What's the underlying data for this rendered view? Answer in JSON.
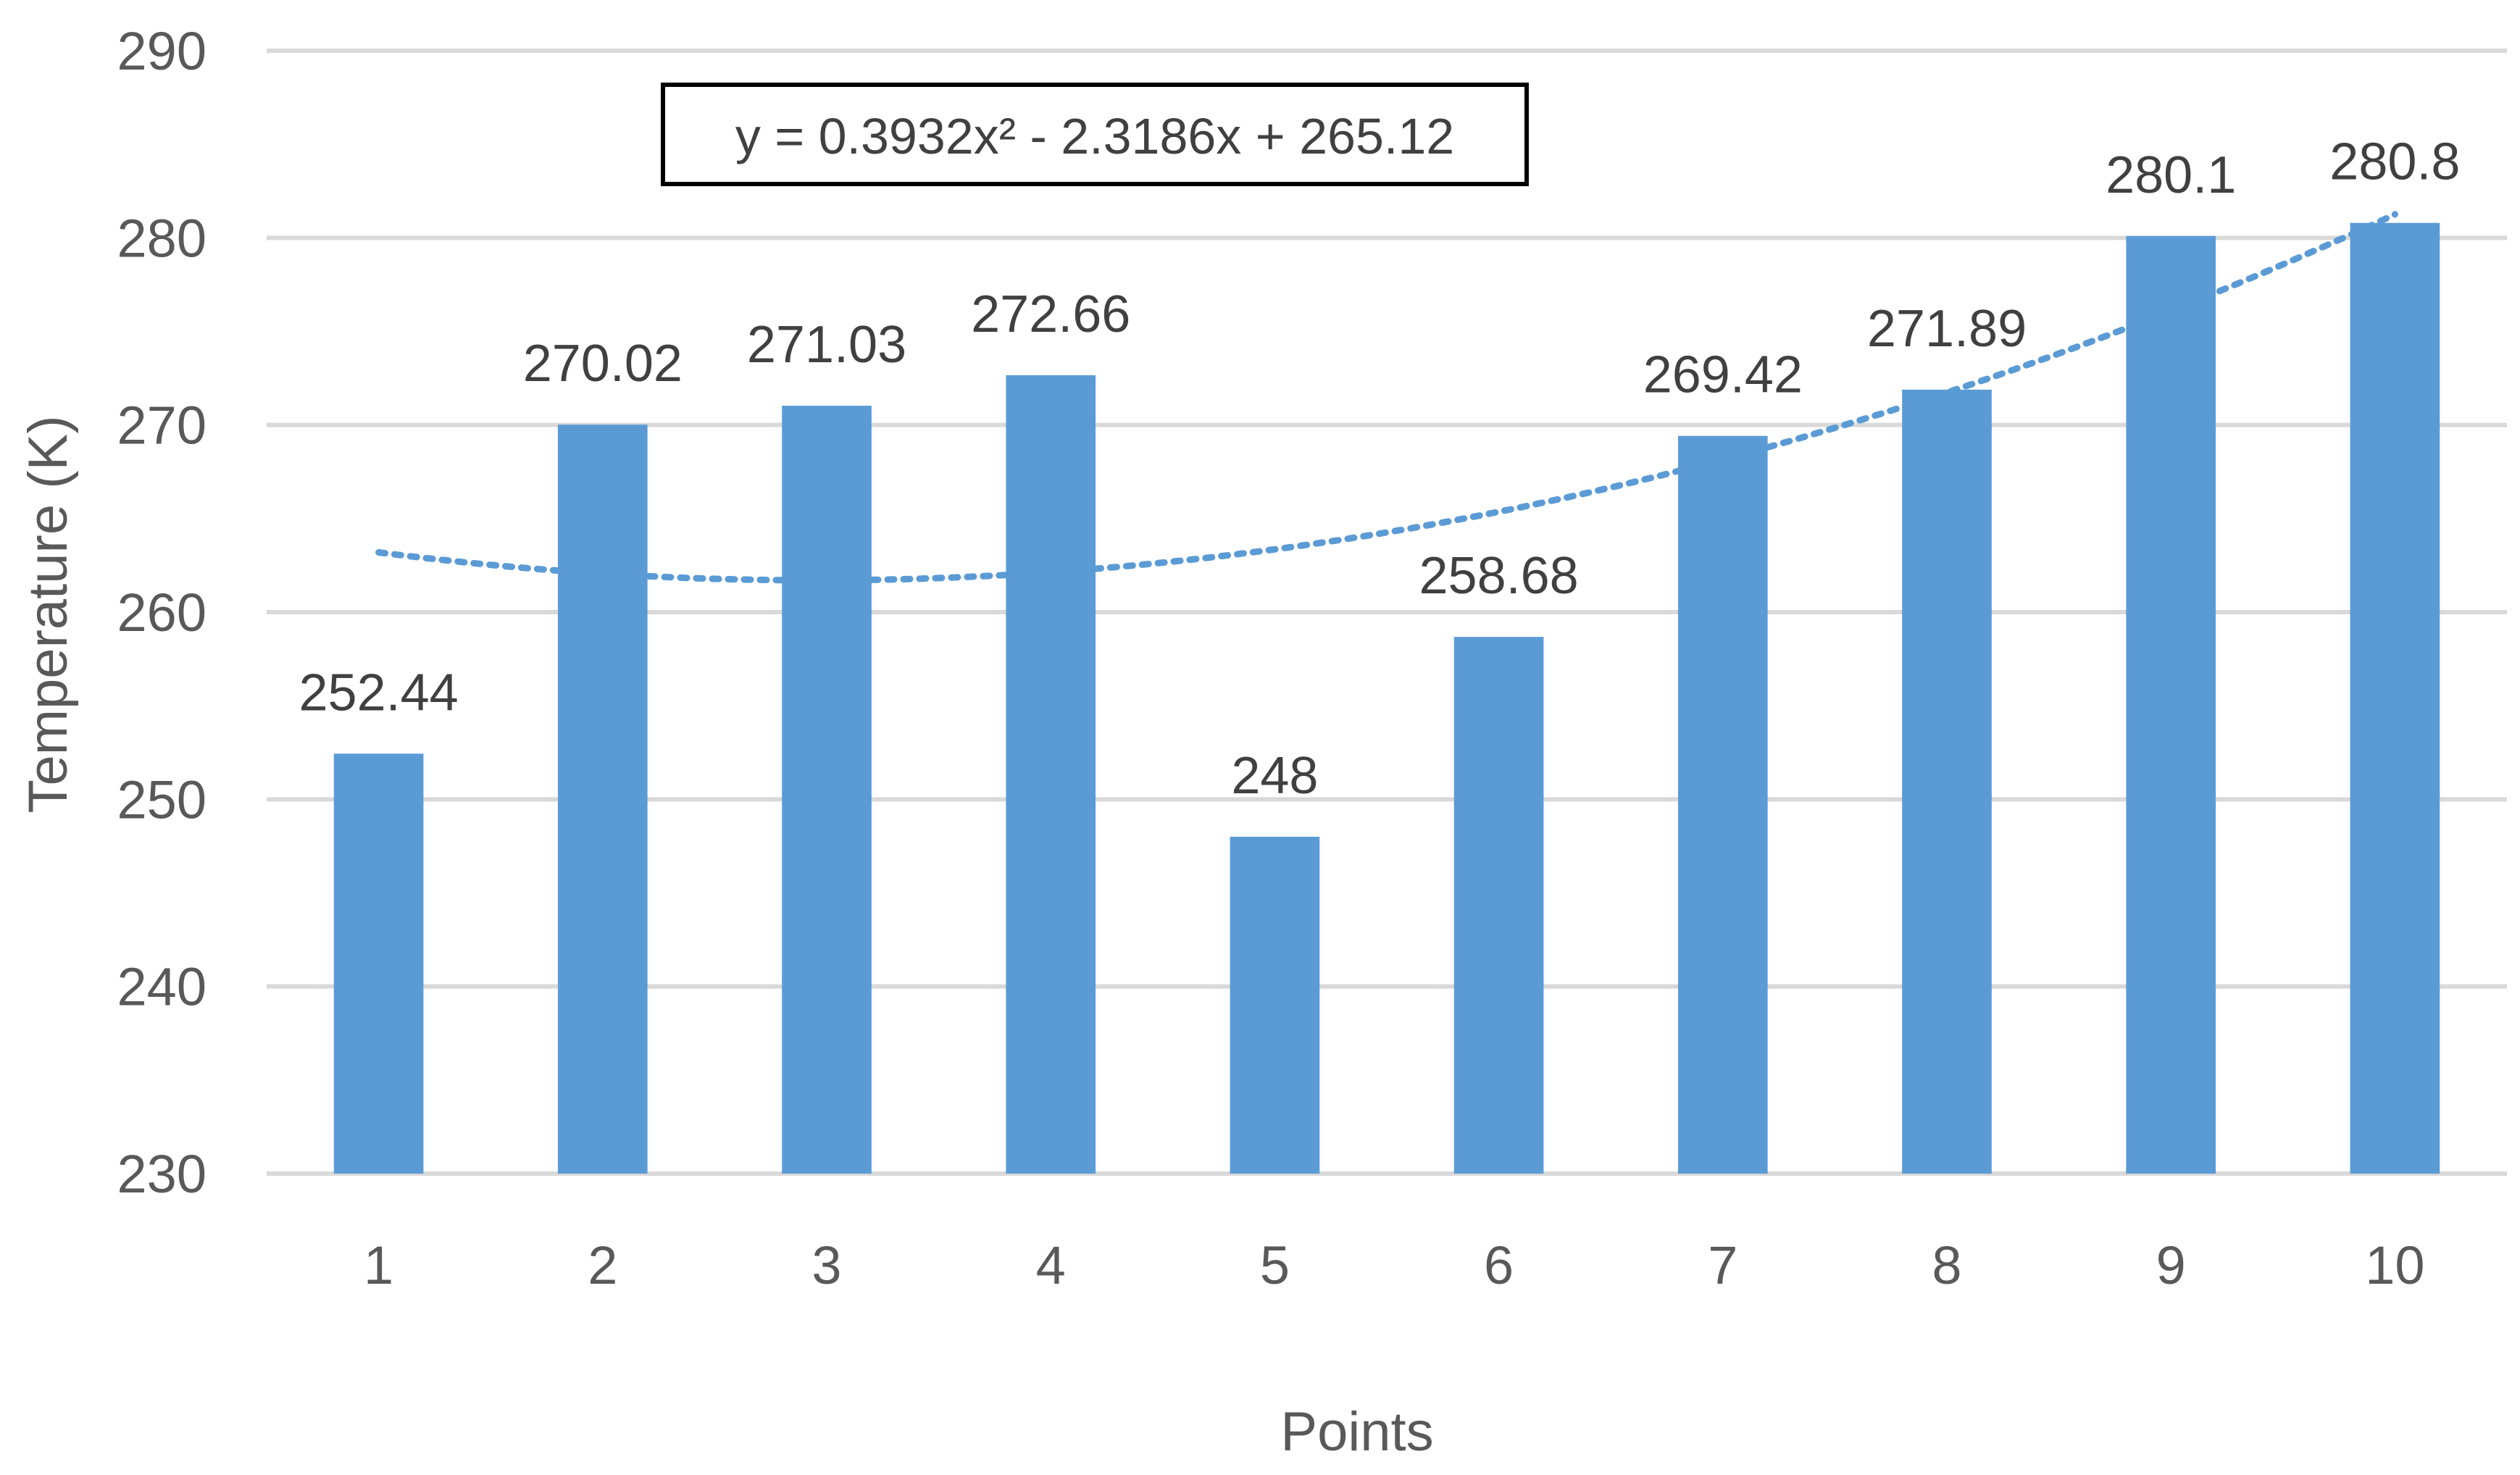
{
  "chart_data": {
    "type": "bar",
    "categories": [
      "1",
      "2",
      "3",
      "4",
      "5",
      "6",
      "7",
      "8",
      "9",
      "10"
    ],
    "values": [
      252.44,
      270.02,
      271.03,
      272.66,
      248,
      258.68,
      269.42,
      271.89,
      280.1,
      280.8
    ],
    "data_labels": [
      "252.44",
      "270.02",
      "271.03",
      "272.66",
      "248",
      "258.68",
      "269.42",
      "271.89",
      "280.1",
      "280.8"
    ],
    "title": "",
    "xlabel": "Points",
    "ylabel": "Temperature (K)",
    "ylim": [
      230,
      290
    ],
    "yticks": [
      "230",
      "240",
      "250",
      "260",
      "270",
      "280",
      "290"
    ],
    "grid": true,
    "legend": "none",
    "bar_color": "#5B9BD5",
    "trendline": {
      "type": "polynomial",
      "order": 2,
      "coefficients": [
        0.3932,
        -2.3186,
        265.12
      ],
      "equation": "y = 0.3932x² - 2.3186x + 265.12",
      "color": "#5B9BD5",
      "style": "dotted"
    }
  }
}
